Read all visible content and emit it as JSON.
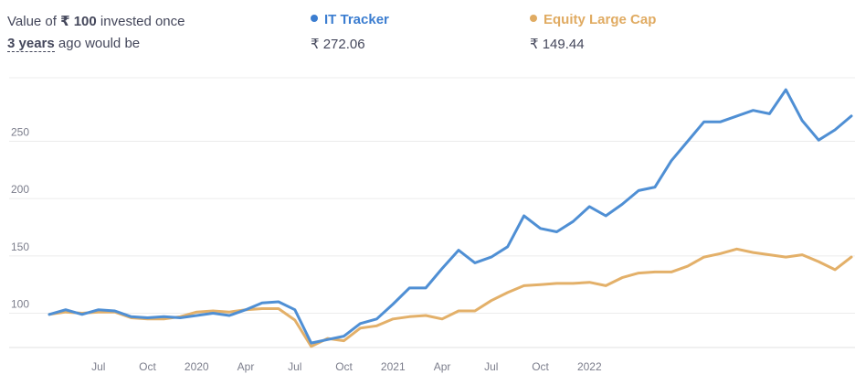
{
  "summary": {
    "prefix": "Value of",
    "currency": "₹",
    "amount": "100",
    "middle": "invested once",
    "period": "3 years",
    "suffix": "ago would be"
  },
  "legend": [
    {
      "name": "IT Tracker",
      "value": "₹ 272.06",
      "color": "#4f8fd4"
    },
    {
      "name": "Equity Large Cap",
      "value": "₹ 149.44",
      "color": "#e3b069"
    }
  ],
  "chart_data": {
    "type": "line",
    "y_ticks": [
      100,
      150,
      200,
      250
    ],
    "ylim": [
      70,
      300
    ],
    "x_ticks": [
      {
        "label": "Jul",
        "index": 3
      },
      {
        "label": "Oct",
        "index": 6
      },
      {
        "label": "2020",
        "index": 9
      },
      {
        "label": "Apr",
        "index": 12
      },
      {
        "label": "Jul",
        "index": 15
      },
      {
        "label": "Oct",
        "index": 18
      },
      {
        "label": "2021",
        "index": 21
      },
      {
        "label": "Apr",
        "index": 24
      },
      {
        "label": "Jul",
        "index": 27
      },
      {
        "label": "Oct",
        "index": 30
      },
      {
        "label": "2022",
        "index": 33
      }
    ],
    "grid": true,
    "series": [
      {
        "name": "IT Tracker",
        "color": "#4f8fd4",
        "values": [
          99,
          103,
          99,
          103,
          102,
          97,
          96,
          97,
          96,
          98,
          100,
          98,
          103,
          109,
          110,
          103,
          74,
          77,
          80,
          91,
          95,
          108,
          122,
          122,
          139,
          155,
          144,
          149,
          158,
          185,
          174,
          171,
          180,
          193,
          185,
          195,
          207,
          210,
          233,
          250,
          267,
          267,
          272,
          277,
          274,
          295,
          268,
          251,
          260,
          272
        ]
      },
      {
        "name": "Equity Large Cap",
        "color": "#e3b069",
        "values": [
          99,
          101,
          100,
          101,
          101,
          96,
          95,
          95,
          97,
          101,
          102,
          101,
          103,
          104,
          104,
          94,
          71,
          78,
          76,
          87,
          89,
          95,
          97,
          98,
          95,
          102,
          102,
          111,
          118,
          124,
          125,
          126,
          126,
          127,
          124,
          131,
          135,
          136,
          136,
          141,
          149,
          152,
          156,
          153,
          151,
          149,
          151,
          145,
          138,
          149
        ]
      }
    ]
  }
}
